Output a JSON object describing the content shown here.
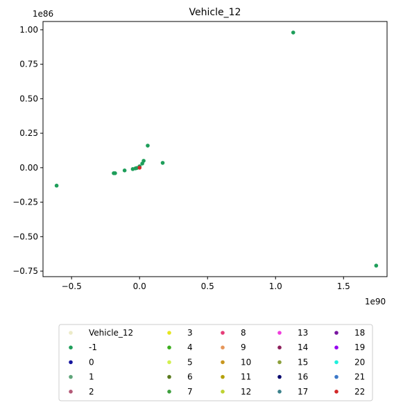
{
  "chart_data": {
    "type": "scatter",
    "title": "Vehicle_12",
    "xlabel": "",
    "ylabel": "",
    "x_offset_label": "1e90",
    "y_offset_label": "1e86",
    "xlim": [
      -0.71,
      1.82
    ],
    "ylim": [
      -0.79,
      1.06
    ],
    "x_ticks": [
      -0.5,
      0.0,
      0.5,
      1.0,
      1.5
    ],
    "x_tick_labels": [
      "−0.5",
      "0.0",
      "0.5",
      "1.0",
      "1.5"
    ],
    "y_ticks": [
      -0.75,
      -0.5,
      -0.25,
      0.0,
      0.25,
      0.5,
      0.75,
      1.0
    ],
    "y_tick_labels": [
      "−0.75",
      "−0.50",
      "−0.25",
      "0.00",
      "0.25",
      "0.50",
      "0.75",
      "1.00"
    ],
    "grid": false,
    "legend_placement": "bottom-center",
    "legend_columns": 5,
    "series": [
      {
        "name": "Vehicle_12",
        "color": "#ecebc8",
        "points": []
      },
      {
        "name": "-1",
        "color": "#1e9e5a",
        "points": [
          [
            1.13,
            0.98
          ],
          [
            1.74,
            -0.71
          ],
          [
            -0.61,
            -0.13
          ],
          [
            -0.19,
            -0.04
          ],
          [
            -0.18,
            -0.04
          ],
          [
            -0.11,
            -0.02
          ],
          [
            -0.05,
            -0.01
          ],
          [
            -0.03,
            -0.005
          ],
          [
            -0.02,
            -0.002
          ],
          [
            0.0,
            0.01
          ],
          [
            0.02,
            0.03
          ],
          [
            0.03,
            0.05
          ],
          [
            0.06,
            0.16
          ],
          [
            0.17,
            0.035
          ]
        ]
      },
      {
        "name": "0",
        "color": "#15159e",
        "points": []
      },
      {
        "name": "1",
        "color": "#5fa57a",
        "points": []
      },
      {
        "name": "2",
        "color": "#b45a78",
        "points": []
      },
      {
        "name": "3",
        "color": "#e6e61e",
        "points": []
      },
      {
        "name": "4",
        "color": "#3cae1e",
        "points": []
      },
      {
        "name": "5",
        "color": "#d2f050",
        "points": []
      },
      {
        "name": "6",
        "color": "#5a7a1e",
        "points": []
      },
      {
        "name": "7",
        "color": "#3fa03f",
        "points": []
      },
      {
        "name": "8",
        "color": "#e63c78",
        "points": []
      },
      {
        "name": "9",
        "color": "#e6965a",
        "points": []
      },
      {
        "name": "10",
        "color": "#c8961e",
        "points": []
      },
      {
        "name": "11",
        "color": "#b4a00a",
        "points": []
      },
      {
        "name": "12",
        "color": "#bed232",
        "points": []
      },
      {
        "name": "13",
        "color": "#f03cdc",
        "points": []
      },
      {
        "name": "14",
        "color": "#8c1e5a",
        "points": []
      },
      {
        "name": "15",
        "color": "#8ca03c",
        "points": []
      },
      {
        "name": "16",
        "color": "#0a0a6e",
        "points": []
      },
      {
        "name": "17",
        "color": "#3c828c",
        "points": []
      },
      {
        "name": "18",
        "color": "#7814a0",
        "points": []
      },
      {
        "name": "19",
        "color": "#9600f0",
        "points": []
      },
      {
        "name": "20",
        "color": "#1ef0dc",
        "points": []
      },
      {
        "name": "21",
        "color": "#3c78c8",
        "points": []
      },
      {
        "name": "22",
        "color": "#d22828",
        "points": [
          [
            0.0,
            0.0
          ]
        ]
      }
    ]
  }
}
